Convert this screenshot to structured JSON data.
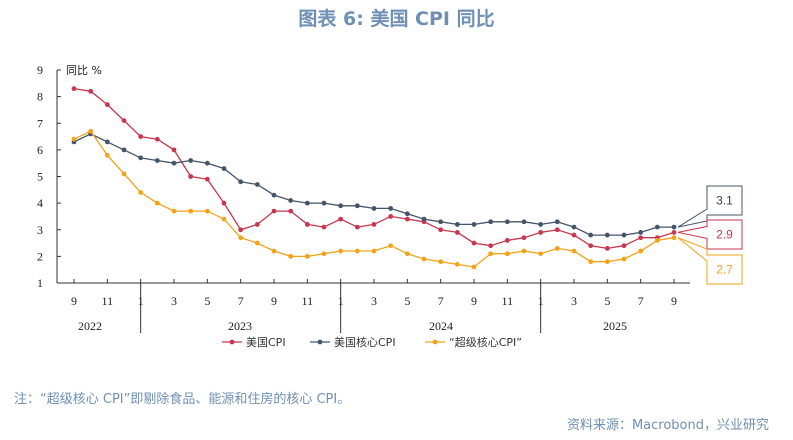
{
  "page": {
    "title": "图表 6:  美国 CPI 同比",
    "note": "注：“超级核心 CPI”即剔除食品、能源和住房的核心 CPI。",
    "source": "资料来源：Macrobond，兴业研究"
  },
  "chart_data": {
    "type": "line",
    "unit_label": "同比 %",
    "ylim": [
      1,
      9
    ],
    "y_ticks": [
      "1",
      "2",
      "3",
      "4",
      "5",
      "6",
      "7",
      "8",
      "9"
    ],
    "x_tick_labels": [
      "9",
      "11",
      "1",
      "3",
      "5",
      "7",
      "9",
      "11",
      "1",
      "3",
      "5",
      "7",
      "9",
      "11",
      "1",
      "3",
      "5",
      "7",
      "9"
    ],
    "x_year_labels": [
      "2022",
      "2023",
      "2024",
      "2025"
    ],
    "colors": {
      "cpi": "#c8374f",
      "core": "#44546a",
      "supercore": "#f2a31a"
    },
    "legend": [
      "美国CPI",
      "美国核心CPI",
      "“超级核心CPI”"
    ],
    "series": [
      {
        "name": "美国CPI",
        "color": "#c8374f",
        "values": [
          8.3,
          8.2,
          7.7,
          7.1,
          6.5,
          6.4,
          6.0,
          5.0,
          4.9,
          4.0,
          3.0,
          3.2,
          3.7,
          3.7,
          3.2,
          3.1,
          3.4,
          3.1,
          3.2,
          3.5,
          3.4,
          3.3,
          3.0,
          2.9,
          2.5,
          2.4,
          2.6,
          2.7,
          2.9,
          3.0,
          2.8,
          2.4,
          2.3,
          2.4,
          2.7,
          2.7,
          2.9
        ],
        "callout": "2.9"
      },
      {
        "name": "美国核心CPI",
        "color": "#44546a",
        "values": [
          6.3,
          6.6,
          6.3,
          6.0,
          5.7,
          5.6,
          5.5,
          5.6,
          5.5,
          5.3,
          4.8,
          4.7,
          4.3,
          4.1,
          4.0,
          4.0,
          3.9,
          3.9,
          3.8,
          3.8,
          3.6,
          3.4,
          3.3,
          3.2,
          3.2,
          3.3,
          3.3,
          3.3,
          3.2,
          3.3,
          3.1,
          2.8,
          2.8,
          2.8,
          2.9,
          3.1,
          3.1
        ],
        "callout": "3.1"
      },
      {
        "name": "“超级核心CPI”",
        "color": "#f2a31a",
        "values": [
          6.4,
          6.7,
          5.8,
          5.1,
          4.4,
          4.0,
          3.7,
          3.7,
          3.7,
          3.4,
          2.7,
          2.5,
          2.2,
          2.0,
          2.0,
          2.1,
          2.2,
          2.2,
          2.2,
          2.4,
          2.1,
          1.9,
          1.8,
          1.7,
          1.6,
          2.1,
          2.1,
          2.2,
          2.1,
          2.3,
          2.2,
          1.8,
          1.8,
          1.9,
          2.2,
          2.6,
          2.7
        ],
        "callout": "2.7"
      }
    ]
  }
}
